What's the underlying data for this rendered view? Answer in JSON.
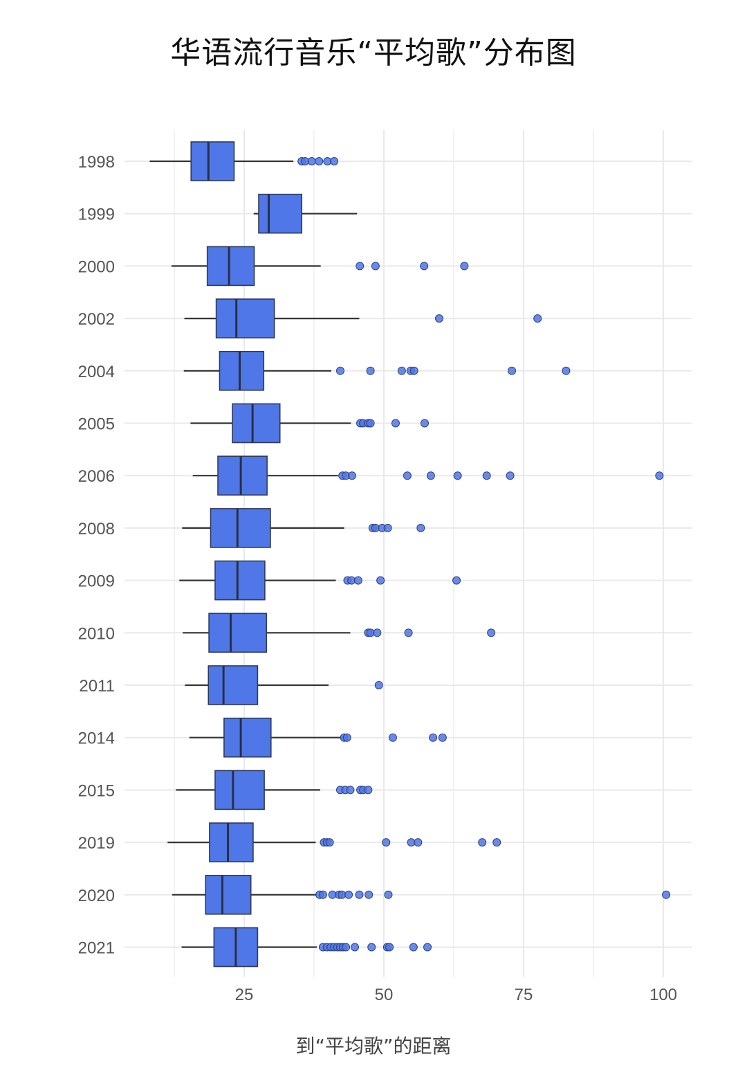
{
  "chart_data": {
    "type": "boxplot",
    "title": "华语流行音乐“平均歌”分布图",
    "xlabel": "到“平均歌”的距离",
    "ylabel": "",
    "xlim": [
      0,
      105
    ],
    "x_ticks": [
      25,
      50,
      75,
      100
    ],
    "grid": "on",
    "categories": [
      "1998",
      "1999",
      "2000",
      "2002",
      "2004",
      "2005",
      "2006",
      "2008",
      "2009",
      "2010",
      "2011",
      "2014",
      "2015",
      "2019",
      "2020",
      "2021"
    ],
    "boxes": [
      {
        "year": "1998",
        "whisker_low": 8.1,
        "q1": 15.5,
        "median": 18.6,
        "q3": 23.2,
        "whisker_high": 33.8,
        "outliers": [
          35.3,
          35.9,
          37.1,
          38.4,
          39.9,
          41.1
        ]
      },
      {
        "year": "1999",
        "whisker_low": 26.7,
        "q1": 27.6,
        "median": 29.4,
        "q3": 35.3,
        "whisker_high": 45.2,
        "outliers": []
      },
      {
        "year": "2000",
        "whisker_low": 12.0,
        "q1": 18.4,
        "median": 22.3,
        "q3": 26.8,
        "whisker_high": 38.7,
        "outliers": [
          45.7,
          48.5,
          57.2,
          64.4
        ]
      },
      {
        "year": "2002",
        "whisker_low": 14.3,
        "q1": 20.0,
        "median": 23.6,
        "q3": 30.4,
        "whisker_high": 45.6,
        "outliers": [
          59.9,
          77.5
        ]
      },
      {
        "year": "2004",
        "whisker_low": 14.2,
        "q1": 20.6,
        "median": 24.2,
        "q3": 28.5,
        "whisker_high": 40.6,
        "outliers": [
          42.2,
          47.6,
          53.2,
          54.8,
          55.4,
          72.9,
          82.6
        ]
      },
      {
        "year": "2005",
        "whisker_low": 15.4,
        "q1": 22.9,
        "median": 26.5,
        "q3": 31.4,
        "whisker_high": 44.1,
        "outliers": [
          45.8,
          46.3,
          47.2,
          47.6,
          52.1,
          57.3
        ]
      },
      {
        "year": "2006",
        "whisker_low": 15.8,
        "q1": 20.3,
        "median": 24.4,
        "q3": 29.1,
        "whisker_high": 41.8,
        "outliers": [
          42.6,
          43.2,
          44.3,
          54.2,
          58.4,
          63.2,
          68.4,
          72.6,
          99.3
        ]
      },
      {
        "year": "2008",
        "whisker_low": 13.9,
        "q1": 19.0,
        "median": 23.8,
        "q3": 29.7,
        "whisker_high": 42.9,
        "outliers": [
          48.0,
          48.5,
          49.7,
          50.7,
          56.6
        ]
      },
      {
        "year": "2009",
        "whisker_low": 13.4,
        "q1": 19.8,
        "median": 23.8,
        "q3": 28.7,
        "whisker_high": 41.4,
        "outliers": [
          43.5,
          44.2,
          45.4,
          49.4,
          63.0
        ]
      },
      {
        "year": "2010",
        "whisker_low": 14.0,
        "q1": 18.7,
        "median": 22.6,
        "q3": 29.0,
        "whisker_high": 44.0,
        "outliers": [
          47.2,
          47.6,
          48.8,
          54.4,
          69.2
        ]
      },
      {
        "year": "2011",
        "whisker_low": 14.4,
        "q1": 18.6,
        "median": 21.3,
        "q3": 27.4,
        "whisker_high": 40.1,
        "outliers": [
          49.1
        ]
      },
      {
        "year": "2014",
        "whisker_low": 15.2,
        "q1": 21.4,
        "median": 24.4,
        "q3": 29.8,
        "whisker_high": 42.5,
        "outliers": [
          42.9,
          43.4,
          51.6,
          58.8,
          60.5
        ]
      },
      {
        "year": "2015",
        "whisker_low": 12.8,
        "q1": 19.8,
        "median": 23.0,
        "q3": 28.6,
        "whisker_high": 38.6,
        "outliers": [
          42.2,
          43.1,
          44.0,
          45.8,
          46.3,
          47.2
        ]
      },
      {
        "year": "2019",
        "whisker_low": 11.3,
        "q1": 18.8,
        "median": 22.1,
        "q3": 26.6,
        "whisker_high": 37.8,
        "outliers": [
          39.3,
          39.8,
          40.3,
          50.4,
          54.9,
          56.1,
          67.6,
          70.2
        ]
      },
      {
        "year": "2020",
        "whisker_low": 12.1,
        "q1": 18.1,
        "median": 21.1,
        "q3": 26.2,
        "whisker_high": 38.0,
        "outliers": [
          38.5,
          39.1,
          40.8,
          42.0,
          42.5,
          43.7,
          45.6,
          47.3,
          50.8,
          100.5
        ]
      },
      {
        "year": "2021",
        "whisker_low": 13.8,
        "q1": 19.6,
        "median": 23.5,
        "q3": 27.4,
        "whisker_high": 38.0,
        "outliers": [
          39.1,
          39.8,
          40.5,
          41.1,
          41.7,
          42.2,
          42.7,
          43.2,
          44.8,
          47.8,
          50.6,
          51.0,
          55.3,
          57.8
        ]
      }
    ],
    "colors": {
      "box_fill": "#4f77e8",
      "box_edge": "#2f3a5a",
      "median": "#2a2f45",
      "outlier": "#4f77e8",
      "grid": "#e9e9ec"
    }
  }
}
